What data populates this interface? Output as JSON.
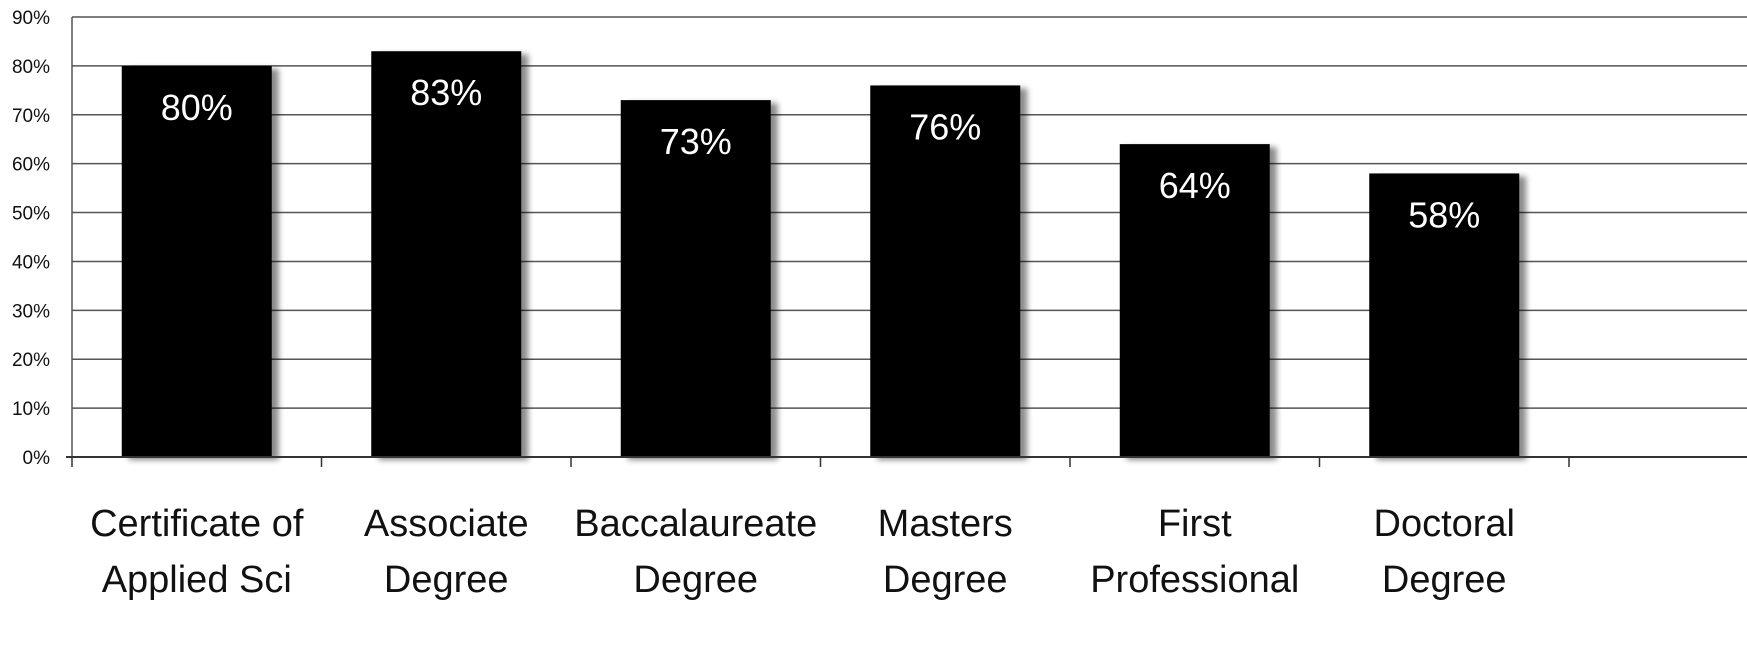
{
  "chart_data": {
    "type": "bar",
    "title": "",
    "xlabel": "",
    "ylabel": "",
    "categories": [
      [
        "Certificate of",
        "Applied Sci"
      ],
      [
        "Associate",
        "Degree"
      ],
      [
        "Baccalaureate",
        "Degree"
      ],
      [
        "Masters",
        "Degree"
      ],
      [
        "First",
        "Professional"
      ],
      [
        "Doctoral",
        "Degree"
      ]
    ],
    "values": [
      80,
      83,
      73,
      76,
      64,
      58
    ],
    "data_labels": [
      "80%",
      "83%",
      "73%",
      "76%",
      "64%",
      "58%"
    ],
    "ylim": [
      0,
      90
    ],
    "yticks": [
      0,
      10,
      20,
      30,
      40,
      50,
      60,
      70,
      80,
      90
    ],
    "ytick_labels": [
      "0%",
      "10%",
      "20%",
      "30%",
      "40%",
      "50%",
      "60%",
      "70%",
      "80%",
      "90%"
    ],
    "grid": true,
    "legend": "none",
    "colors": {
      "bar": "#000000",
      "grid": "#555555",
      "label_on_bar": "#ffffff",
      "text": "#111111"
    }
  }
}
